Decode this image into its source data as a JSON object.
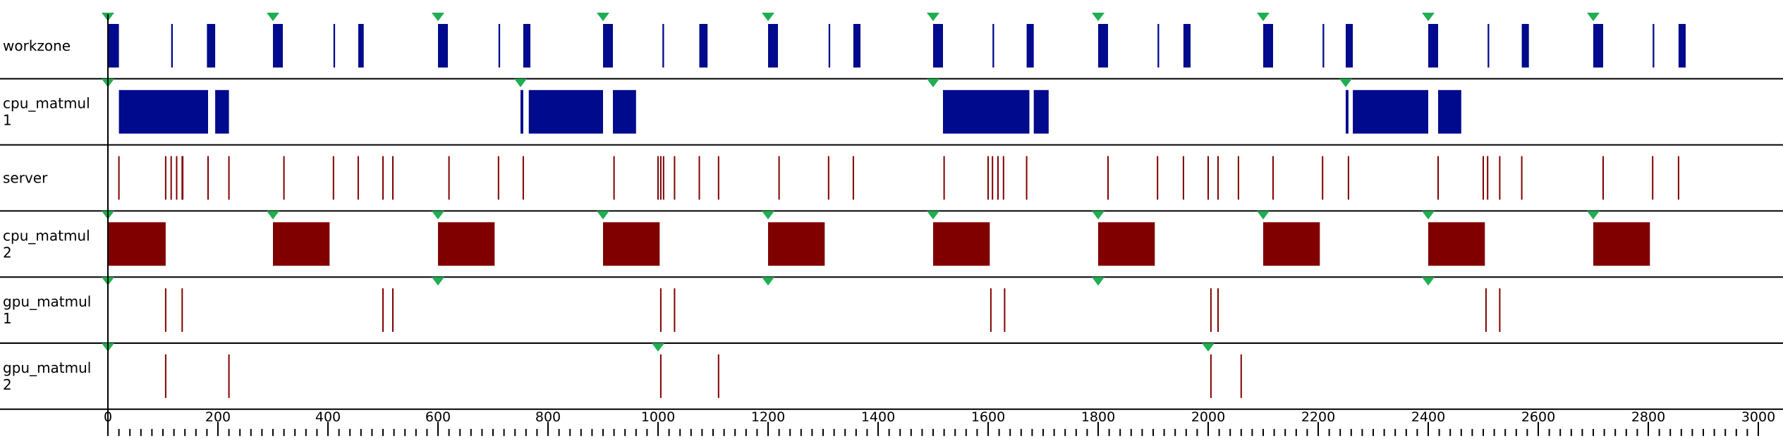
{
  "chart_data": {
    "type": "timeline",
    "x_axis": {
      "range": [
        0,
        3000
      ],
      "major_step": 200,
      "minor_step": 20,
      "tick_labels": [
        "0",
        "200",
        "400",
        "600",
        "800",
        "1000",
        "1200",
        "1400",
        "1600",
        "1800",
        "2000",
        "2200",
        "2400",
        "2600",
        "2800",
        "3000"
      ]
    },
    "colors": {
      "blue": "#000a8c",
      "red": "#800000",
      "marker": "#1fae51",
      "line": "#000000"
    },
    "rows": [
      {
        "label_lines": [
          "workzone"
        ],
        "markers": [
          0,
          300,
          600,
          900,
          1200,
          1500,
          1800,
          2100,
          2400,
          2700
        ],
        "blocks": [
          {
            "start": 0,
            "end": 20,
            "color": "blue"
          },
          {
            "start": 115,
            "end": 118,
            "color": "blue"
          },
          {
            "start": 180,
            "end": 195,
            "color": "blue"
          },
          {
            "start": 300,
            "end": 318,
            "color": "blue"
          },
          {
            "start": 410,
            "end": 413,
            "color": "blue"
          },
          {
            "start": 455,
            "end": 465,
            "color": "blue"
          },
          {
            "start": 600,
            "end": 618,
            "color": "blue"
          },
          {
            "start": 710,
            "end": 713,
            "color": "blue"
          },
          {
            "start": 755,
            "end": 768,
            "color": "blue"
          },
          {
            "start": 900,
            "end": 918,
            "color": "blue"
          },
          {
            "start": 1008,
            "end": 1011,
            "color": "blue"
          },
          {
            "start": 1075,
            "end": 1090,
            "color": "blue"
          },
          {
            "start": 1200,
            "end": 1218,
            "color": "blue"
          },
          {
            "start": 1310,
            "end": 1313,
            "color": "blue"
          },
          {
            "start": 1355,
            "end": 1368,
            "color": "blue"
          },
          {
            "start": 1500,
            "end": 1518,
            "color": "blue"
          },
          {
            "start": 1608,
            "end": 1611,
            "color": "blue"
          },
          {
            "start": 1670,
            "end": 1683,
            "color": "blue"
          },
          {
            "start": 1800,
            "end": 1818,
            "color": "blue"
          },
          {
            "start": 1908,
            "end": 1911,
            "color": "blue"
          },
          {
            "start": 1955,
            "end": 1968,
            "color": "blue"
          },
          {
            "start": 2100,
            "end": 2118,
            "color": "blue"
          },
          {
            "start": 2208,
            "end": 2211,
            "color": "blue"
          },
          {
            "start": 2250,
            "end": 2263,
            "color": "blue"
          },
          {
            "start": 2400,
            "end": 2418,
            "color": "blue"
          },
          {
            "start": 2508,
            "end": 2511,
            "color": "blue"
          },
          {
            "start": 2570,
            "end": 2583,
            "color": "blue"
          },
          {
            "start": 2700,
            "end": 2718,
            "color": "blue"
          },
          {
            "start": 2808,
            "end": 2811,
            "color": "blue"
          },
          {
            "start": 2855,
            "end": 2868,
            "color": "blue"
          }
        ],
        "events": []
      },
      {
        "label_lines": [
          "cpu_matmul",
          "1"
        ],
        "markers": [
          0,
          750,
          1500,
          2250
        ],
        "blocks": [
          {
            "start": 20,
            "end": 182,
            "color": "blue"
          },
          {
            "start": 195,
            "end": 220,
            "color": "blue"
          },
          {
            "start": 750,
            "end": 755,
            "color": "blue"
          },
          {
            "start": 765,
            "end": 900,
            "color": "blue"
          },
          {
            "start": 918,
            "end": 960,
            "color": "blue"
          },
          {
            "start": 1518,
            "end": 1675,
            "color": "blue"
          },
          {
            "start": 1683,
            "end": 1710,
            "color": "blue"
          },
          {
            "start": 2250,
            "end": 2255,
            "color": "blue"
          },
          {
            "start": 2263,
            "end": 2400,
            "color": "blue"
          },
          {
            "start": 2418,
            "end": 2460,
            "color": "blue"
          }
        ],
        "events": []
      },
      {
        "label_lines": [
          "server"
        ],
        "markers": [],
        "blocks": [],
        "events": [
          20,
          105,
          115,
          125,
          135,
          136,
          182,
          220,
          320,
          410,
          455,
          500,
          518,
          620,
          710,
          755,
          920,
          1000,
          1005,
          1010,
          1030,
          1075,
          1110,
          1220,
          1310,
          1355,
          1520,
          1600,
          1608,
          1618,
          1628,
          1670,
          1818,
          1908,
          1955,
          2000,
          2018,
          2055,
          2118,
          2208,
          2255,
          2418,
          2500,
          2508,
          2530,
          2570,
          2718,
          2808,
          2855
        ]
      },
      {
        "label_lines": [
          "cpu_matmul",
          "2"
        ],
        "markers": [
          0,
          300,
          600,
          900,
          1200,
          1500,
          1800,
          2100,
          2400,
          2700
        ],
        "blocks": [
          {
            "start": 0,
            "end": 105,
            "color": "red"
          },
          {
            "start": 300,
            "end": 403,
            "color": "red"
          },
          {
            "start": 600,
            "end": 703,
            "color": "red"
          },
          {
            "start": 900,
            "end": 1003,
            "color": "red"
          },
          {
            "start": 1200,
            "end": 1303,
            "color": "red"
          },
          {
            "start": 1500,
            "end": 1603,
            "color": "red"
          },
          {
            "start": 1800,
            "end": 1903,
            "color": "red"
          },
          {
            "start": 2100,
            "end": 2203,
            "color": "red"
          },
          {
            "start": 2400,
            "end": 2503,
            "color": "red"
          },
          {
            "start": 2700,
            "end": 2803,
            "color": "red"
          }
        ],
        "events": []
      },
      {
        "label_lines": [
          "gpu_matmul",
          "1"
        ],
        "markers": [
          0,
          600,
          1200,
          1800,
          2400
        ],
        "blocks": [],
        "events": [
          105,
          135,
          500,
          518,
          1005,
          1030,
          1605,
          1630,
          2005,
          2018,
          2505,
          2530
        ]
      },
      {
        "label_lines": [
          "gpu_matmul",
          "2"
        ],
        "markers": [
          0,
          1000,
          2000
        ],
        "blocks": [],
        "events": [
          105,
          220,
          1005,
          1110,
          2005,
          2060
        ]
      }
    ]
  }
}
